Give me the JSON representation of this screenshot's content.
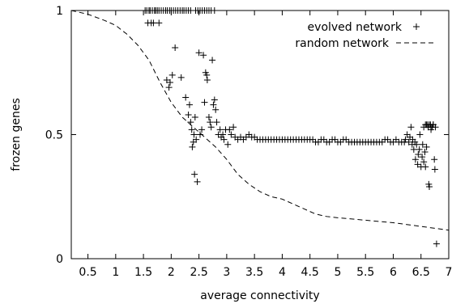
{
  "chart_data": {
    "type": "scatter",
    "xlabel": "average connectivity",
    "ylabel": "frozen genes",
    "xlim": [
      0.2,
      7.0
    ],
    "ylim": [
      0,
      1
    ],
    "xticks": [
      0.5,
      1,
      1.5,
      2,
      2.5,
      3,
      3.5,
      4,
      4.5,
      5,
      5.5,
      6,
      6.5,
      7
    ],
    "xtick_labels": [
      "0.5",
      "1",
      "1.5",
      "2",
      "2.5",
      "3",
      "3.5",
      "4",
      "4.5",
      "5",
      "5.5",
      "6",
      "6.5",
      "7"
    ],
    "yticks": [
      0,
      0.5,
      1
    ],
    "ytick_labels": [
      "0",
      "0.5",
      "1"
    ],
    "grid": false,
    "legend_position": "top-right",
    "series": [
      {
        "name": "evolved network",
        "style": "points",
        "marker": "plus",
        "x": [
          1.53,
          1.56,
          1.6,
          1.62,
          1.66,
          1.7,
          1.58,
          1.64,
          1.68,
          1.72,
          1.75,
          1.78,
          1.82,
          1.86,
          1.9,
          1.93,
          1.97,
          2.0,
          2.04,
          2.08,
          2.12,
          2.16,
          2.2,
          2.23,
          2.27,
          2.31,
          2.35,
          2.44,
          2.48,
          2.52,
          2.56,
          2.6,
          2.64,
          2.68,
          2.72,
          2.78,
          1.78,
          1.92,
          1.96,
          1.98,
          2.02,
          2.07,
          2.18,
          2.26,
          2.31,
          2.33,
          2.35,
          2.37,
          2.38,
          2.4,
          2.41,
          2.42,
          2.43,
          2.45,
          2.47,
          2.5,
          2.52,
          2.55,
          2.58,
          2.6,
          2.62,
          2.64,
          2.65,
          2.68,
          2.7,
          2.72,
          2.74,
          2.76,
          2.78,
          2.8,
          2.82,
          2.85,
          2.88,
          2.9,
          2.93,
          2.95,
          2.98,
          3.02,
          3.05,
          3.08,
          3.12,
          3.15,
          3.2,
          3.25,
          3.3,
          3.35,
          3.4,
          3.45,
          3.5,
          3.55,
          3.6,
          3.65,
          3.7,
          3.75,
          3.8,
          3.85,
          3.9,
          3.95,
          4.0,
          4.05,
          4.1,
          4.15,
          4.2,
          4.25,
          4.3,
          4.35,
          4.4,
          4.45,
          4.5,
          4.55,
          4.6,
          4.65,
          4.7,
          4.75,
          4.8,
          4.85,
          4.9,
          4.95,
          5.0,
          5.05,
          5.1,
          5.15,
          5.2,
          5.25,
          5.3,
          5.35,
          5.4,
          5.45,
          5.5,
          5.55,
          5.6,
          5.65,
          5.7,
          5.75,
          5.8,
          5.85,
          5.9,
          5.95,
          6.0,
          6.05,
          6.1,
          6.15,
          6.2,
          6.22,
          6.25,
          6.28,
          6.3,
          6.32,
          6.34,
          6.35,
          6.37,
          6.39,
          6.4,
          6.42,
          6.44,
          6.45,
          6.47,
          6.48,
          6.5,
          6.52,
          6.53,
          6.55,
          6.57,
          6.58,
          6.6,
          6.62,
          6.64,
          6.65,
          6.67,
          6.68,
          6.7,
          6.72,
          6.74,
          6.75,
          6.78,
          6.55,
          6.58,
          6.6,
          6.63,
          6.65,
          6.68,
          6.72,
          6.76
        ],
        "y": [
          1.0,
          1.0,
          1.0,
          1.0,
          1.0,
          1.0,
          0.95,
          0.95,
          0.95,
          1.0,
          1.0,
          1.0,
          1.0,
          1.0,
          1.0,
          1.0,
          1.0,
          1.0,
          1.0,
          1.0,
          1.0,
          1.0,
          1.0,
          1.0,
          1.0,
          1.0,
          1.0,
          1.0,
          1.0,
          1.0,
          1.0,
          1.0,
          1.0,
          1.0,
          1.0,
          1.0,
          0.95,
          0.72,
          0.69,
          0.71,
          0.74,
          0.85,
          0.73,
          0.65,
          0.58,
          0.62,
          0.55,
          0.52,
          0.45,
          0.47,
          0.5,
          0.34,
          0.57,
          0.48,
          0.31,
          0.83,
          0.5,
          0.52,
          0.82,
          0.63,
          0.75,
          0.74,
          0.72,
          0.57,
          0.55,
          0.53,
          0.8,
          0.62,
          0.64,
          0.6,
          0.55,
          0.5,
          0.52,
          0.49,
          0.5,
          0.48,
          0.52,
          0.46,
          0.52,
          0.5,
          0.53,
          0.49,
          0.48,
          0.49,
          0.48,
          0.49,
          0.5,
          0.49,
          0.49,
          0.48,
          0.48,
          0.48,
          0.48,
          0.48,
          0.48,
          0.48,
          0.48,
          0.48,
          0.48,
          0.48,
          0.48,
          0.48,
          0.48,
          0.48,
          0.48,
          0.48,
          0.48,
          0.48,
          0.48,
          0.48,
          0.47,
          0.47,
          0.48,
          0.48,
          0.47,
          0.47,
          0.48,
          0.48,
          0.47,
          0.47,
          0.48,
          0.48,
          0.47,
          0.47,
          0.47,
          0.47,
          0.47,
          0.47,
          0.47,
          0.47,
          0.47,
          0.47,
          0.47,
          0.47,
          0.47,
          0.48,
          0.48,
          0.47,
          0.47,
          0.48,
          0.47,
          0.47,
          0.47,
          0.48,
          0.5,
          0.47,
          0.49,
          0.53,
          0.46,
          0.48,
          0.44,
          0.47,
          0.4,
          0.46,
          0.38,
          0.42,
          0.44,
          0.5,
          0.37,
          0.41,
          0.46,
          0.39,
          0.43,
          0.37,
          0.45,
          0.54,
          0.3,
          0.29,
          0.54,
          0.52,
          0.53,
          0.54,
          0.4,
          0.36,
          0.06,
          0.53,
          0.54,
          0.54,
          0.53,
          0.54,
          0.53,
          0.54,
          0.53
        ]
      },
      {
        "name": "random network",
        "style": "dashed-line",
        "x": [
          0.2,
          0.5,
          0.8,
          1.0,
          1.2,
          1.4,
          1.6,
          1.8,
          2.0,
          2.2,
          2.4,
          2.6,
          2.8,
          3.0,
          3.2,
          3.4,
          3.6,
          3.8,
          4.0,
          4.2,
          4.4,
          4.6,
          4.8,
          5.0,
          5.5,
          6.0,
          6.5,
          7.0
        ],
        "y": [
          1.0,
          0.985,
          0.96,
          0.94,
          0.905,
          0.86,
          0.8,
          0.71,
          0.63,
          0.57,
          0.53,
          0.49,
          0.45,
          0.4,
          0.34,
          0.3,
          0.27,
          0.25,
          0.24,
          0.22,
          0.2,
          0.18,
          0.17,
          0.165,
          0.155,
          0.145,
          0.13,
          0.115
        ]
      }
    ]
  }
}
